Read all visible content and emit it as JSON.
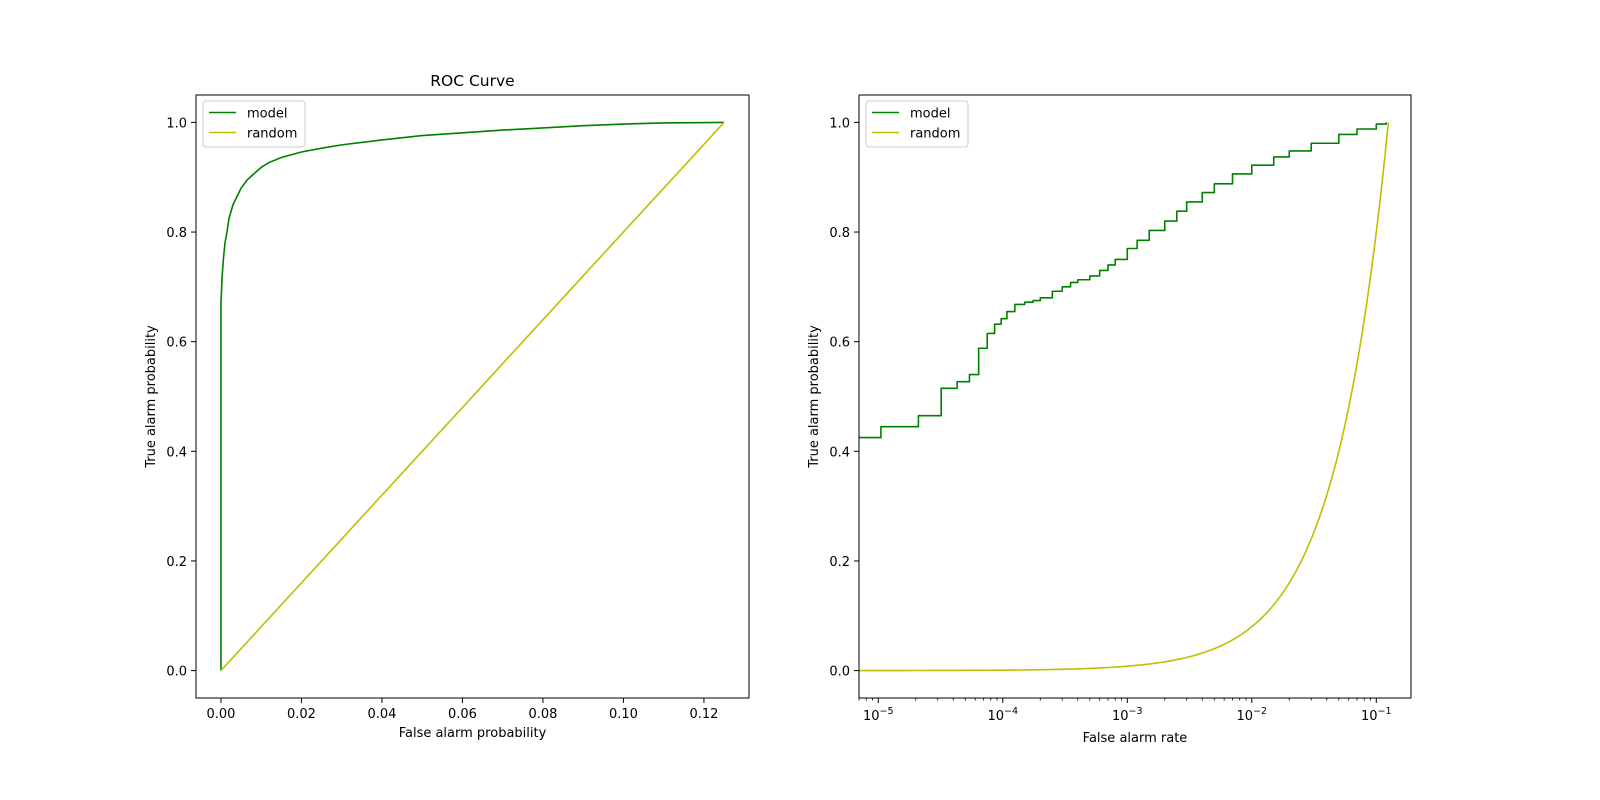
{
  "colors": {
    "model": "#008000",
    "random": "#bfbf00",
    "axis": "#000000",
    "legend_border": "#cccccc"
  },
  "chart_data": [
    {
      "type": "line",
      "title": "ROC Curve",
      "xlabel": "False alarm probability",
      "ylabel": "True alarm probability",
      "xscale": "linear",
      "xlim": [
        -0.0062,
        0.1312
      ],
      "ylim": [
        -0.05,
        1.05
      ],
      "xticks": [
        0.0,
        0.02,
        0.04,
        0.06,
        0.08,
        0.1,
        0.12
      ],
      "xtick_labels": [
        "0.00",
        "0.02",
        "0.04",
        "0.06",
        "0.08",
        "0.10",
        "0.12"
      ],
      "yticks": [
        0.0,
        0.2,
        0.4,
        0.6,
        0.8,
        1.0
      ],
      "ytick_labels": [
        "0.0",
        "0.2",
        "0.4",
        "0.6",
        "0.8",
        "1.0"
      ],
      "legend": {
        "location": "upper-left",
        "entries": [
          "model",
          "random"
        ]
      },
      "series": [
        {
          "name": "model",
          "x": [
            0.0,
            0.0,
            0.0003,
            0.0006,
            0.001,
            0.0015,
            0.002,
            0.003,
            0.004,
            0.005,
            0.0065,
            0.008,
            0.01,
            0.012,
            0.015,
            0.02,
            0.025,
            0.03,
            0.04,
            0.05,
            0.06,
            0.07,
            0.08,
            0.09,
            0.1,
            0.11,
            0.125
          ],
          "y": [
            0.0,
            0.67,
            0.72,
            0.75,
            0.78,
            0.8,
            0.825,
            0.85,
            0.865,
            0.88,
            0.895,
            0.905,
            0.918,
            0.927,
            0.936,
            0.946,
            0.953,
            0.959,
            0.968,
            0.976,
            0.981,
            0.986,
            0.99,
            0.994,
            0.997,
            0.999,
            1.0
          ]
        },
        {
          "name": "random",
          "x": [
            0.0,
            0.125
          ],
          "y": [
            0.0,
            1.0
          ]
        }
      ]
    },
    {
      "type": "line",
      "title": "",
      "xlabel": "False alarm rate",
      "ylabel": "True alarm probability",
      "xscale": "log",
      "xlim": [
        7e-06,
        0.19
      ],
      "ylim": [
        -0.05,
        1.05
      ],
      "xticks": [
        1e-05,
        0.0001,
        0.001,
        0.01,
        0.1
      ],
      "xtick_labels": [
        [
          "10",
          "−5"
        ],
        [
          "10",
          "−4"
        ],
        [
          "10",
          "−3"
        ],
        [
          "10",
          "−2"
        ],
        [
          "10",
          "−1"
        ]
      ],
      "yticks": [
        0.0,
        0.2,
        0.4,
        0.6,
        0.8,
        1.0
      ],
      "ytick_labels": [
        "0.0",
        "0.2",
        "0.4",
        "0.6",
        "0.8",
        "1.0"
      ],
      "legend": {
        "location": "upper-left",
        "entries": [
          "model",
          "random"
        ]
      },
      "series": [
        {
          "name": "model",
          "step": true,
          "x": [
            7e-06,
            1.05e-05,
            2.1e-05,
            3.2e-05,
            4.3e-05,
            5.4e-05,
            6.4e-05,
            7.5e-05,
            8.6e-05,
            9.7e-05,
            0.000108,
            0.000125,
            0.00015,
            0.000175,
            0.0002,
            0.00025,
            0.0003,
            0.00035,
            0.0004,
            0.0005,
            0.0006,
            0.0007,
            0.0008,
            0.001,
            0.0012,
            0.0015,
            0.002,
            0.0025,
            0.003,
            0.004,
            0.005,
            0.007,
            0.01,
            0.015,
            0.02,
            0.03,
            0.05,
            0.07,
            0.1,
            0.12
          ],
          "y": [
            0.425,
            0.445,
            0.465,
            0.515,
            0.527,
            0.54,
            0.588,
            0.615,
            0.632,
            0.642,
            0.655,
            0.668,
            0.672,
            0.675,
            0.68,
            0.692,
            0.7,
            0.708,
            0.713,
            0.72,
            0.73,
            0.74,
            0.75,
            0.77,
            0.785,
            0.803,
            0.82,
            0.838,
            0.855,
            0.872,
            0.888,
            0.906,
            0.922,
            0.937,
            0.948,
            0.962,
            0.978,
            0.988,
            0.997,
            1.0
          ]
        },
        {
          "name": "random",
          "curve": "x/0.125",
          "x_from": 7e-06,
          "x_to": 0.125
        }
      ]
    }
  ]
}
